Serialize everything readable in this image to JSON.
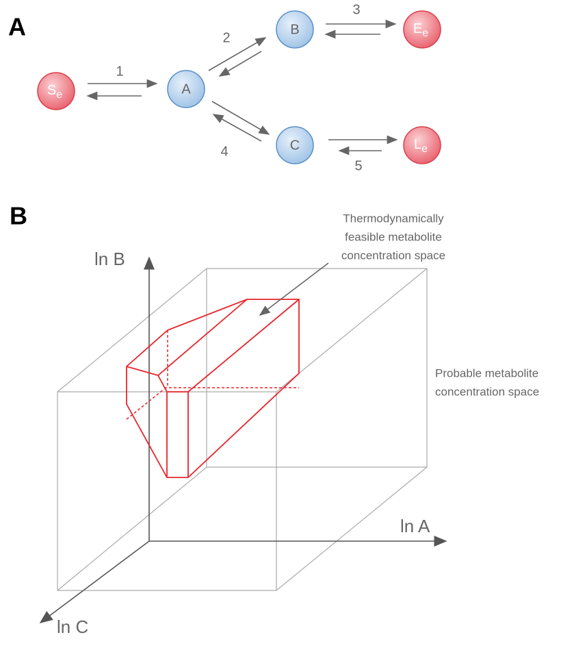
{
  "panel_a": {
    "label": "A",
    "nodes": [
      {
        "label": "S",
        "sub": "e"
      },
      {
        "label": "A"
      },
      {
        "label": "B"
      },
      {
        "label": "C"
      },
      {
        "label": "E",
        "sub": "e"
      },
      {
        "label": "L",
        "sub": "e"
      }
    ],
    "reactions": [
      "1",
      "2",
      "3",
      "4",
      "5"
    ]
  },
  "panel_b": {
    "label": "B",
    "axes": [
      "ln B",
      "ln A",
      "ln C"
    ],
    "annotations": [
      [
        "Thermodynamically",
        "feasible metabolite",
        "concentration space"
      ],
      [
        "Probable metabolite",
        "concentration space"
      ]
    ]
  }
}
